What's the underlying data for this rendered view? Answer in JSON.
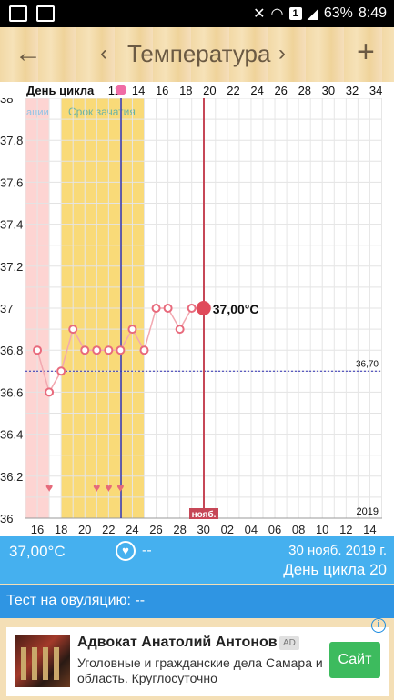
{
  "status_bar": {
    "battery": "63%",
    "time": "8:49",
    "notif_badge": "1",
    "icons": [
      "image-icon",
      "image-icon",
      "mute-icon",
      "wifi-icon",
      "sim-icon",
      "signal-icon",
      "battery-icon"
    ]
  },
  "header": {
    "back_icon": "←",
    "prev_icon": "‹",
    "title": "Температура",
    "next_icon": "›",
    "add_icon": "+"
  },
  "chart_data": {
    "type": "line",
    "top_axis_title": "День цикла",
    "top_ticks": [
      "12",
      "14",
      "16",
      "18",
      "20",
      "22",
      "24",
      "26",
      "28",
      "30",
      "32",
      "34"
    ],
    "bottom_ticks": [
      "16",
      "18",
      "20",
      "22",
      "24",
      "26",
      "28",
      "30",
      "02",
      "04",
      "06",
      "08",
      "10",
      "12",
      "14"
    ],
    "y_ticks": [
      "38",
      "37.8",
      "37.6",
      "37.4",
      "37.2",
      "37",
      "36.8",
      "36.6",
      "36.4",
      "36.2",
      "36"
    ],
    "ylim": [
      36,
      38
    ],
    "period_label": "ации",
    "fertile_label": "Срок зачатия",
    "coverline_value": 36.7,
    "coverline_label": "36,70",
    "series": [
      {
        "x": [
          1,
          2,
          3,
          4,
          5,
          6,
          7,
          8,
          9,
          10,
          11,
          12,
          13,
          14,
          15
        ],
        "values": [
          36.8,
          36.6,
          36.7,
          36.9,
          36.8,
          36.8,
          36.8,
          36.8,
          36.9,
          36.8,
          37.0,
          37.0,
          36.9,
          37.0,
          37.0
        ]
      }
    ],
    "current_day": 20,
    "current_value_label": "37,00°C",
    "current_date_badge": "нояб.",
    "year_label": "2019",
    "heart_days": [
      2,
      6,
      7,
      8
    ]
  },
  "info_bar": {
    "temperature": "37,00°C",
    "heart_icon": "♥",
    "heart_value": "--",
    "date": "30 нояб. 2019 г.",
    "cycle_day": "День цикла 20"
  },
  "ovulation": {
    "text": "Тест на овуляцию: --"
  },
  "ad": {
    "title": "Адвокат Анатолий Антонов",
    "badge": "AD",
    "description": "Уголовные и гражданские дела Самара и область. Круглосуточно",
    "button": "Сайт",
    "info_icon": "i"
  }
}
